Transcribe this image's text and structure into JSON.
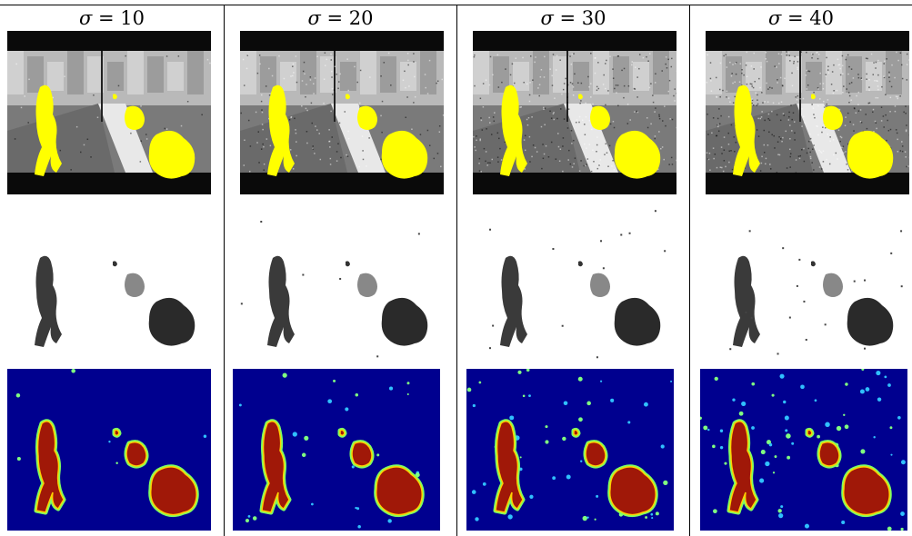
{
  "headers": [
    {
      "symbol": "σ",
      "eq": " = ",
      "value": "10"
    },
    {
      "symbol": "σ",
      "eq": " = ",
      "value": "20"
    },
    {
      "symbol": "σ",
      "eq": " = ",
      "value": "30"
    },
    {
      "symbol": "σ",
      "eq": " = ",
      "value": "40"
    }
  ],
  "rows": [
    {
      "name": "segmentation-overlay",
      "highlight_color": "#ffff00"
    },
    {
      "name": "foreground-mask"
    },
    {
      "name": "probability-heatmap",
      "background_color": "#00008f"
    }
  ],
  "noise_levels": [
    10,
    20,
    30,
    40
  ]
}
